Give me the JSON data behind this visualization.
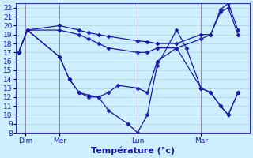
{
  "background_color": "#cceeff",
  "grid_color": "#aacccc",
  "line_color": "#1a1aaa",
  "marker": "D",
  "marker_size": 2.5,
  "xlabel": "Température (°c)",
  "xlabel_color": "#1a1aaa",
  "xlabel_fontsize": 8,
  "tick_label_color": "#1a1aaa",
  "tick_label_fontsize": 6.5,
  "ylim": [
    8,
    22.5
  ],
  "yticks": [
    8,
    9,
    10,
    11,
    12,
    13,
    14,
    15,
    16,
    17,
    18,
    19,
    20,
    21,
    22
  ],
  "xlim": [
    0,
    24
  ],
  "day_labels": [
    "Dim",
    "Mer",
    "Lun",
    "Mar"
  ],
  "day_positions": [
    1.0,
    4.5,
    12.5,
    19.0
  ],
  "vline_positions": [
    1.0,
    4.5,
    12.5,
    19.0
  ],
  "series": [
    {
      "x": [
        0.3,
        1.2,
        4.5,
        6.5,
        7.5,
        8.5,
        9.5,
        12.5,
        13.5,
        14.5,
        16.5,
        19.0,
        20.0,
        21.0,
        21.8,
        22.8
      ],
      "y": [
        17.0,
        19.5,
        20.0,
        19.5,
        19.2,
        19.0,
        18.8,
        18.3,
        18.2,
        18.0,
        18.0,
        19.0,
        19.0,
        21.8,
        22.5,
        19.5
      ]
    },
    {
      "x": [
        0.3,
        1.2,
        4.5,
        6.5,
        7.5,
        8.5,
        9.5,
        12.5,
        13.5,
        14.5,
        16.5,
        19.0,
        20.0,
        21.0,
        21.8,
        22.8
      ],
      "y": [
        17.0,
        19.5,
        19.5,
        19.0,
        18.5,
        18.0,
        17.5,
        17.0,
        17.0,
        17.5,
        17.5,
        18.5,
        19.0,
        21.5,
        22.0,
        19.0
      ]
    },
    {
      "x": [
        0.3,
        1.2,
        4.5,
        5.5,
        6.5,
        7.5,
        8.5,
        9.5,
        10.5,
        12.5,
        13.5,
        14.5,
        16.5,
        19.0,
        20.0,
        21.0,
        21.8,
        22.8
      ],
      "y": [
        17.0,
        19.5,
        16.5,
        14.0,
        12.5,
        12.2,
        12.0,
        12.5,
        13.3,
        13.0,
        12.5,
        16.0,
        17.5,
        13.0,
        12.5,
        11.0,
        10.0,
        12.5
      ]
    },
    {
      "x": [
        0.3,
        1.2,
        4.5,
        5.5,
        6.5,
        7.5,
        8.5,
        9.5,
        11.5,
        12.5,
        13.5,
        14.5,
        16.5,
        17.5,
        19.0,
        20.0,
        21.0,
        21.8,
        22.8
      ],
      "y": [
        17.0,
        19.5,
        16.5,
        14.0,
        12.5,
        12.0,
        12.0,
        10.5,
        9.0,
        8.0,
        10.0,
        15.5,
        19.5,
        17.5,
        13.0,
        12.5,
        11.0,
        10.0,
        12.5
      ]
    }
  ]
}
